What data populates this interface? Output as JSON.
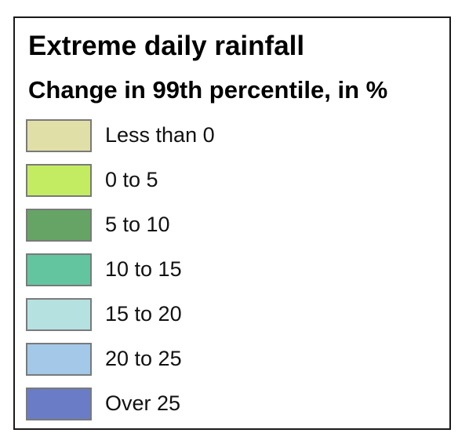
{
  "legend": {
    "title": "Extreme daily rainfall",
    "subtitle": "Change in 99th percentile, in %",
    "items": [
      {
        "label": "Less than 0",
        "color": "#e0dfa8"
      },
      {
        "label": "0 to 5",
        "color": "#c4ec62"
      },
      {
        "label": "5 to 10",
        "color": "#66a466"
      },
      {
        "label": "10 to 15",
        "color": "#63c5a0"
      },
      {
        "label": "15 to 20",
        "color": "#b5e2e0"
      },
      {
        "label": "20 to 25",
        "color": "#a3c8e8"
      },
      {
        "label": "Over 25",
        "color": "#6b7cc6"
      }
    ]
  }
}
